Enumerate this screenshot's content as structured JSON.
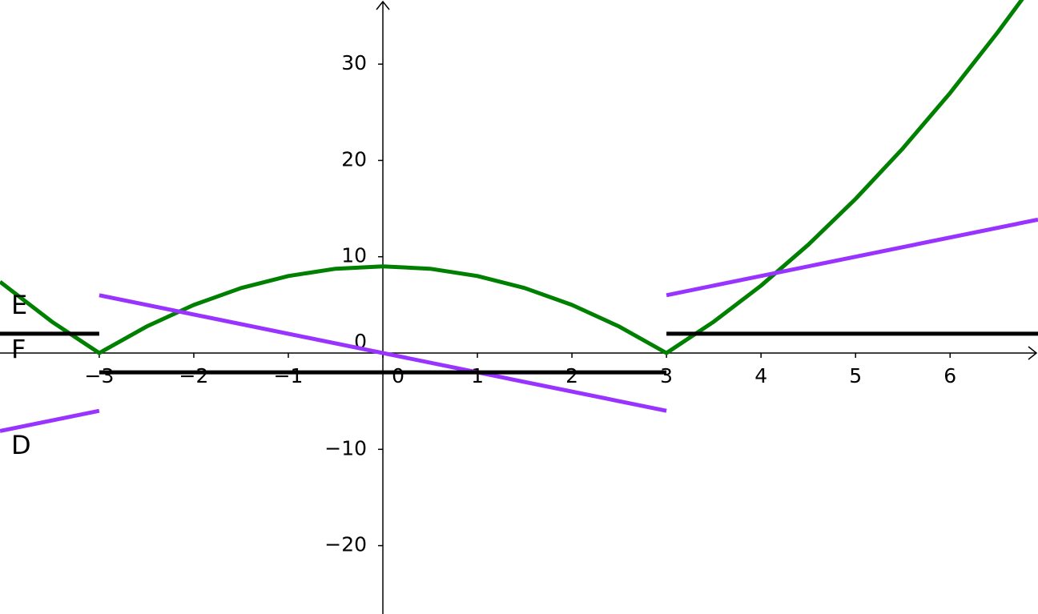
{
  "chart_data": {
    "type": "line",
    "xlim": [
      -4.05,
      6.93
    ],
    "ylim": [
      -27.1,
      36.66
    ],
    "xticks": [
      {
        "value": -3,
        "label": "−3"
      },
      {
        "value": -2,
        "label": "−2"
      },
      {
        "value": -1,
        "label": "−1"
      },
      0,
      1,
      2,
      3,
      4,
      5,
      6
    ],
    "yticks": [
      {
        "value": -20,
        "label": "−20"
      },
      {
        "value": -10,
        "label": "−10"
      },
      0,
      10,
      20,
      30
    ],
    "series": [
      {
        "name": "E",
        "color": "#008000",
        "x": [
          -4.05,
          -3.5,
          -3,
          -2.5,
          -2,
          -1.5,
          -1,
          -0.5,
          0,
          0.5,
          1,
          1.5,
          2,
          2.5,
          3,
          3.5,
          4,
          4.5,
          5,
          5.5,
          6,
          6.5,
          6.8
        ],
        "values": [
          7.4,
          3.25,
          0,
          2.75,
          5,
          6.75,
          8,
          8.75,
          9,
          8.75,
          8,
          6.75,
          5,
          2.75,
          0,
          3.25,
          7,
          11.25,
          16,
          21.25,
          27,
          33.25,
          37.24
        ]
      },
      {
        "name": "D",
        "color": "#9933ff",
        "x": [
          -4.05,
          -3,
          null,
          -3,
          3,
          null,
          3,
          6.93
        ],
        "values": [
          -8.1,
          -6,
          null,
          6,
          -6,
          null,
          6,
          13.86
        ]
      },
      {
        "name": "F",
        "color": "#000000",
        "x": [
          -4.05,
          -3,
          null,
          -3,
          3,
          null,
          3,
          6.93
        ],
        "values": [
          2,
          2,
          null,
          -2,
          -2,
          null,
          2,
          2
        ]
      }
    ]
  }
}
